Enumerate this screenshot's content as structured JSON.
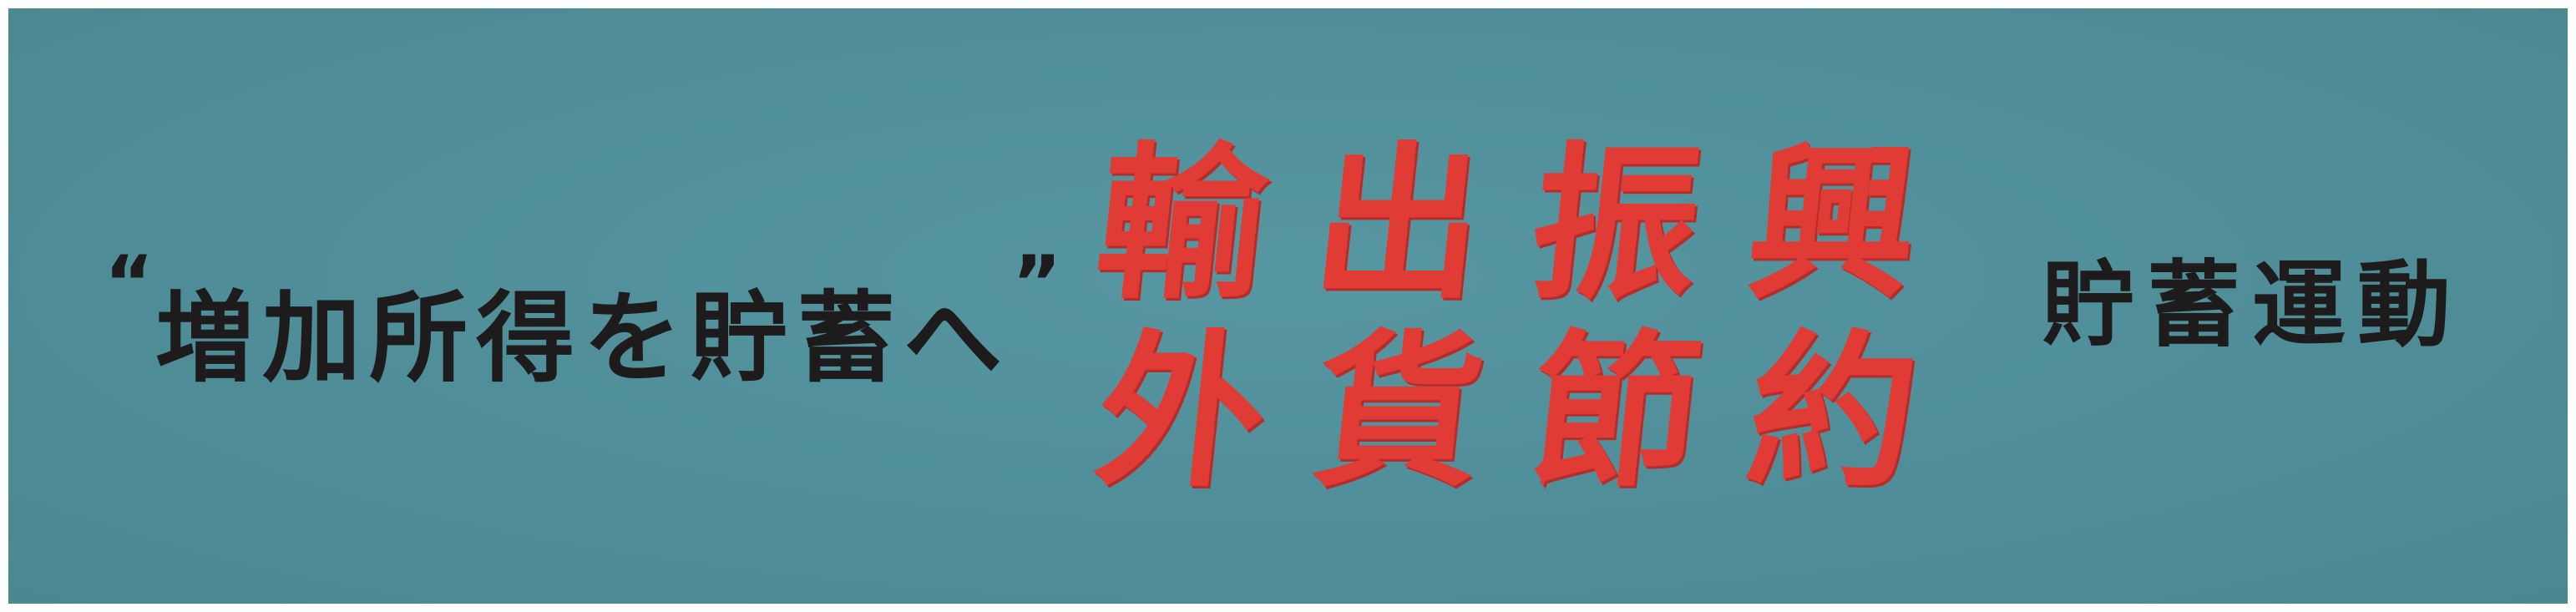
{
  "poster": {
    "background_color": "#4f8e98",
    "accent_color": "#e13b36",
    "text_color": "#1d1b1c",
    "left_slogan": {
      "open_quote": "“",
      "text": "増加所得を貯蓄へ",
      "close_quote": "”"
    },
    "center_slogan": {
      "line1": "輸出振興",
      "line2": "外貨節約"
    },
    "right_slogan": "貯蓄運動"
  }
}
